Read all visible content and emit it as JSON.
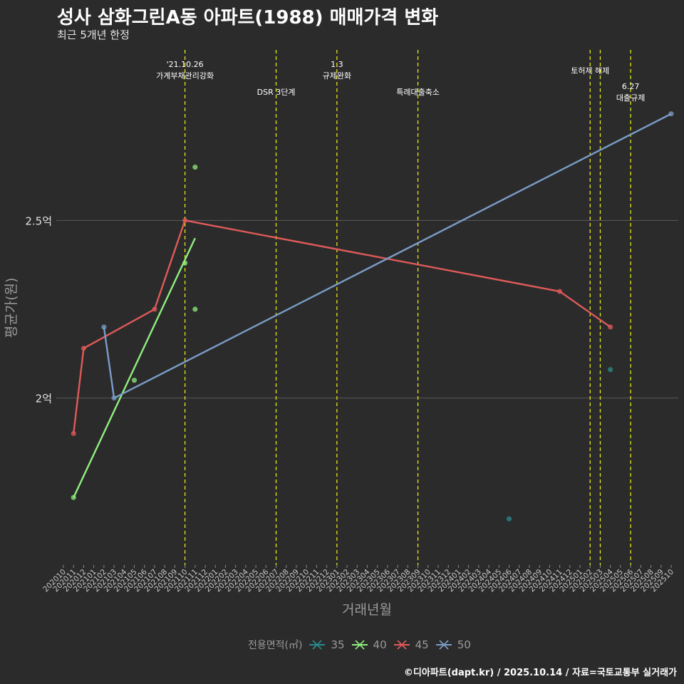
{
  "title": "성사 삼화그린A동 아파트(1988) 매매가격 변화",
  "subtitle": "최근 5개년 한정",
  "caption": "©디아파트(dapt.kr) / 2025.10.14 / 자료=국토교통부 실거래가",
  "chart_data": {
    "type": "line",
    "xlabel": "거래년월",
    "ylabel": "평균가(원)",
    "yticks": [
      {
        "value": 2.0,
        "label": "2억"
      },
      {
        "value": 2.5,
        "label": "2.5억"
      }
    ],
    "categories": [
      "202010",
      "202011",
      "202012",
      "202101",
      "202102",
      "202103",
      "202104",
      "202105",
      "202106",
      "202107",
      "202108",
      "202109",
      "202110",
      "202111",
      "202112",
      "202201",
      "202202",
      "202203",
      "202204",
      "202205",
      "202206",
      "202207",
      "202208",
      "202209",
      "202210",
      "202211",
      "202212",
      "202301",
      "202302",
      "202303",
      "202304",
      "202305",
      "202306",
      "202307",
      "202308",
      "202309",
      "202310",
      "202311",
      "202312",
      "202401",
      "202402",
      "202403",
      "202404",
      "202405",
      "202406",
      "202407",
      "202408",
      "202409",
      "202410",
      "202411",
      "202412",
      "202501",
      "202502",
      "202503",
      "202504",
      "202505",
      "202506",
      "202507",
      "202508",
      "202509",
      "202510"
    ],
    "ylim": [
      1.53,
      2.98
    ],
    "events": [
      {
        "month": "202110",
        "lines": [
          "'21.10.26",
          "가계부채관리강화"
        ],
        "row": 0
      },
      {
        "month": "202207",
        "lines": [
          "DSR 3단계"
        ],
        "row": 1
      },
      {
        "month": "202301",
        "lines": [
          "1.3",
          "규제완화"
        ],
        "row": 0
      },
      {
        "month": "202309",
        "lines": [
          "특례대출축소"
        ],
        "row": 1
      },
      {
        "month": "202502",
        "lines": [
          "토허제 해제"
        ],
        "row": 0
      },
      {
        "month": "202503",
        "lines": [],
        "row": 0
      },
      {
        "month": "202506",
        "lines": [
          "6.27",
          "대출규제"
        ],
        "row": 1
      }
    ],
    "legend_title": "전용면적(㎡)",
    "series": [
      {
        "name": "35",
        "color": "#2a8c8c",
        "points": [
          {
            "x": "202406",
            "y": 1.66
          },
          {
            "x": "202504",
            "y": 2.08
          }
        ],
        "trend": []
      },
      {
        "name": "40",
        "color": "#90ee7e",
        "points": [
          {
            "x": "202011",
            "y": 1.72
          },
          {
            "x": "202105",
            "y": 2.05
          },
          {
            "x": "202110",
            "y": 2.38
          },
          {
            "x": "202111",
            "y": 2.25
          },
          {
            "x": "202111",
            "y": 2.65
          }
        ],
        "trend": [
          {
            "x": "202011",
            "y": 1.72
          },
          {
            "x": "202111",
            "y": 2.45
          }
        ]
      },
      {
        "name": "45",
        "color": "#e05a5a",
        "points": [
          {
            "x": "202011",
            "y": 1.9
          },
          {
            "x": "202012",
            "y": 2.14
          },
          {
            "x": "202107",
            "y": 2.25
          },
          {
            "x": "202110",
            "y": 2.5
          },
          {
            "x": "202411",
            "y": 2.3
          },
          {
            "x": "202504",
            "y": 2.2
          }
        ],
        "trend": [
          {
            "x": "202011",
            "y": 1.9
          },
          {
            "x": "202012",
            "y": 2.14
          },
          {
            "x": "202107",
            "y": 2.25
          },
          {
            "x": "202110",
            "y": 2.5
          },
          {
            "x": "202411",
            "y": 2.3
          },
          {
            "x": "202504",
            "y": 2.2
          }
        ]
      },
      {
        "name": "50",
        "color": "#7a9cc6",
        "points": [
          {
            "x": "202102",
            "y": 2.2
          },
          {
            "x": "202103",
            "y": 2.0
          },
          {
            "x": "202510",
            "y": 2.8
          }
        ],
        "trend": [
          {
            "x": "202102",
            "y": 2.2
          },
          {
            "x": "202103",
            "y": 2.0
          },
          {
            "x": "202510",
            "y": 2.8
          }
        ]
      }
    ]
  }
}
